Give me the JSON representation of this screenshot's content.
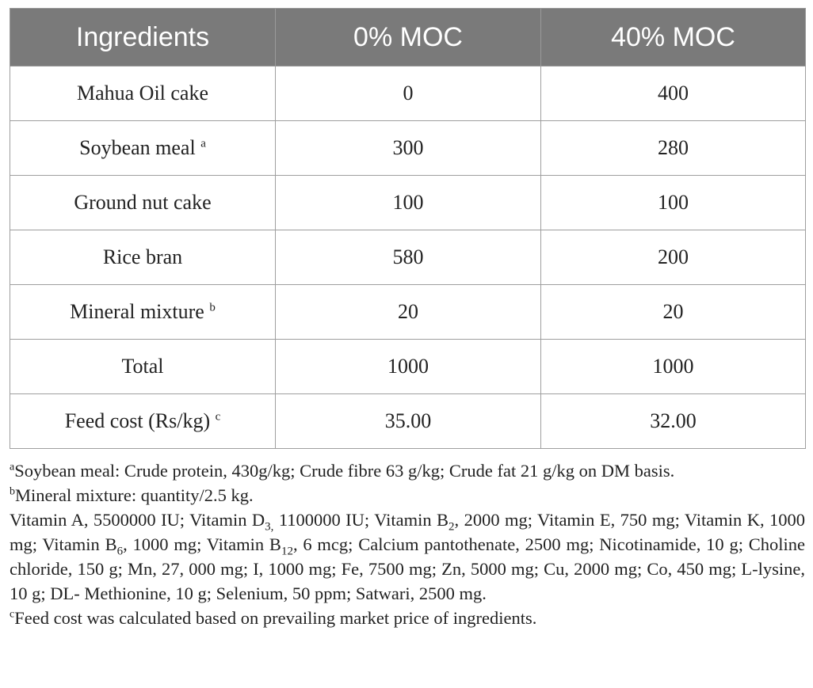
{
  "table": {
    "headers": [
      "Ingredients",
      "0% MOC",
      "40% MOC"
    ],
    "rows": [
      {
        "ingredient": "Mahua Oil cake",
        "mark": "",
        "moc0": "0",
        "moc40": "400"
      },
      {
        "ingredient": "Soybean meal",
        "mark": "a",
        "moc0": "300",
        "moc40": "280"
      },
      {
        "ingredient": "Ground nut cake",
        "mark": "",
        "moc0": "100",
        "moc40": "100"
      },
      {
        "ingredient": "Rice bran",
        "mark": "",
        "moc0": "580",
        "moc40": "200"
      },
      {
        "ingredient": "Mineral mixture",
        "mark": "b",
        "moc0": "20",
        "moc40": "20"
      },
      {
        "ingredient": "Total",
        "mark": "",
        "moc0": "1000",
        "moc40": "1000"
      },
      {
        "ingredient": "Feed cost (Rs/kg)",
        "mark": "c",
        "moc0": "35.00",
        "moc40": "32.00"
      }
    ]
  },
  "footnotes": {
    "a": {
      "mark": "a",
      "text": "Soybean meal: Crude protein, 430g/kg; Crude fibre 63 g/kg; Crude fat 21 g/kg on DM basis."
    },
    "b": {
      "mark": "b",
      "text": "Mineral mixture: quantity/2.5 kg."
    },
    "vitamins": {
      "p1": "Vitamin A, 5500000 IU; Vitamin D",
      "d_sub": "3,",
      "p2": " 1100000 IU; Vitamin B",
      "b2_sub": "2",
      "p3": ", 2000 mg; Vitamin E, 750 mg; Vitamin K, 1000 mg; Vitamin B",
      "b6_sub": "6",
      "p4": ", 1000 mg; Vitamin B",
      "b12_sub": "12",
      "p5": ", 6 mcg; Calcium pantothenate, 2500 mg; Nicotinamide, 10 g; Choline chloride, 150 g; Mn, 27, 000 mg; I, 1000 mg; Fe, 7500 mg; Zn, 5000 mg; Cu, 2000 mg; Co, 450 mg; L-lysine, 10 g; DL- Methionine, 10 g; Selenium, 50 ppm; Satwari, 2500 mg."
    },
    "c": {
      "mark": "c",
      "text": "Feed cost was calculated based on prevailing market price of ingredients."
    }
  }
}
